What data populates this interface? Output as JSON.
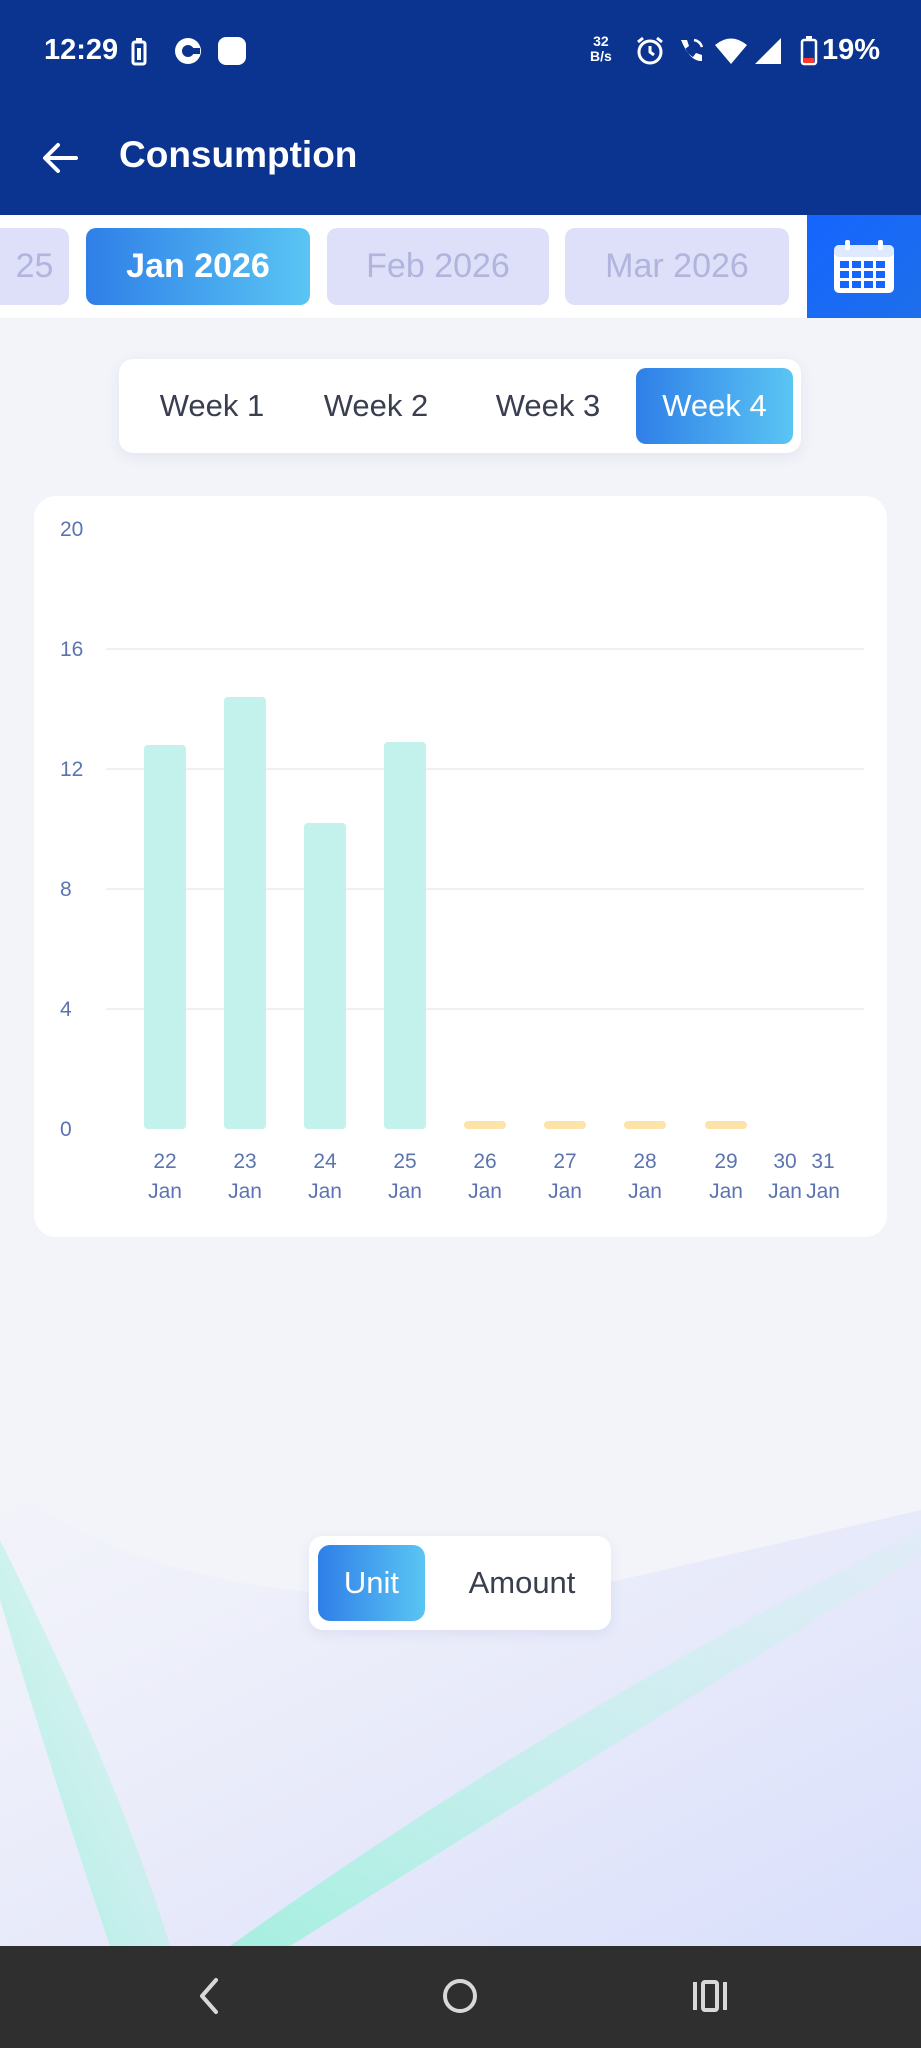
{
  "status_bar": {
    "time": "12:29",
    "net_speed_value": "32",
    "net_speed_unit": "B/s",
    "battery_percent": "19%"
  },
  "app_bar": {
    "title": "Consumption",
    "back_icon": "arrow-left-icon"
  },
  "months": {
    "items": [
      {
        "label": "25",
        "active": false
      },
      {
        "label": "Jan 2026",
        "active": true
      },
      {
        "label": "Feb 2026",
        "active": false
      },
      {
        "label": "Mar 2026",
        "active": false
      }
    ],
    "calendar_icon": "calendar-icon"
  },
  "weeks": {
    "items": [
      {
        "label": "Week 1",
        "active": false
      },
      {
        "label": "Week 2",
        "active": false
      },
      {
        "label": "Week 3",
        "active": false
      },
      {
        "label": "Week 4",
        "active": true
      }
    ]
  },
  "chart_data": {
    "type": "bar",
    "categories": [
      "22 Jan",
      "23 Jan",
      "24 Jan",
      "25 Jan",
      "26 Jan",
      "27 Jan",
      "28 Jan",
      "29 Jan",
      "30 Jan",
      "31 Jan"
    ],
    "values": [
      12.8,
      14.4,
      10.2,
      12.9,
      0,
      0,
      0,
      0,
      null,
      null
    ],
    "pending": [
      false,
      false,
      false,
      false,
      true,
      true,
      true,
      true,
      false,
      false
    ],
    "ylim": [
      0,
      20
    ],
    "yticks": [
      0,
      4,
      8,
      12,
      16,
      20
    ],
    "grid": true,
    "colors": {
      "bar": "#c3f1ec",
      "pending": "#fde3a7",
      "grid": "#e9ecf3",
      "tick": "#5b74b1"
    }
  },
  "toggle": {
    "items": [
      {
        "label": "Unit",
        "active": true
      },
      {
        "label": "Amount",
        "active": false
      }
    ]
  },
  "nav_bar": {
    "back_icon": "nav-back-icon",
    "home_icon": "nav-home-icon",
    "recents_icon": "nav-recents-icon"
  },
  "colors": {
    "app_bar": "#0a3490",
    "accent_start": "#2f7fe8",
    "accent_end": "#5ac5f3",
    "month_inactive_bg": "#dedff9",
    "month_inactive_text": "#b1b5de"
  }
}
